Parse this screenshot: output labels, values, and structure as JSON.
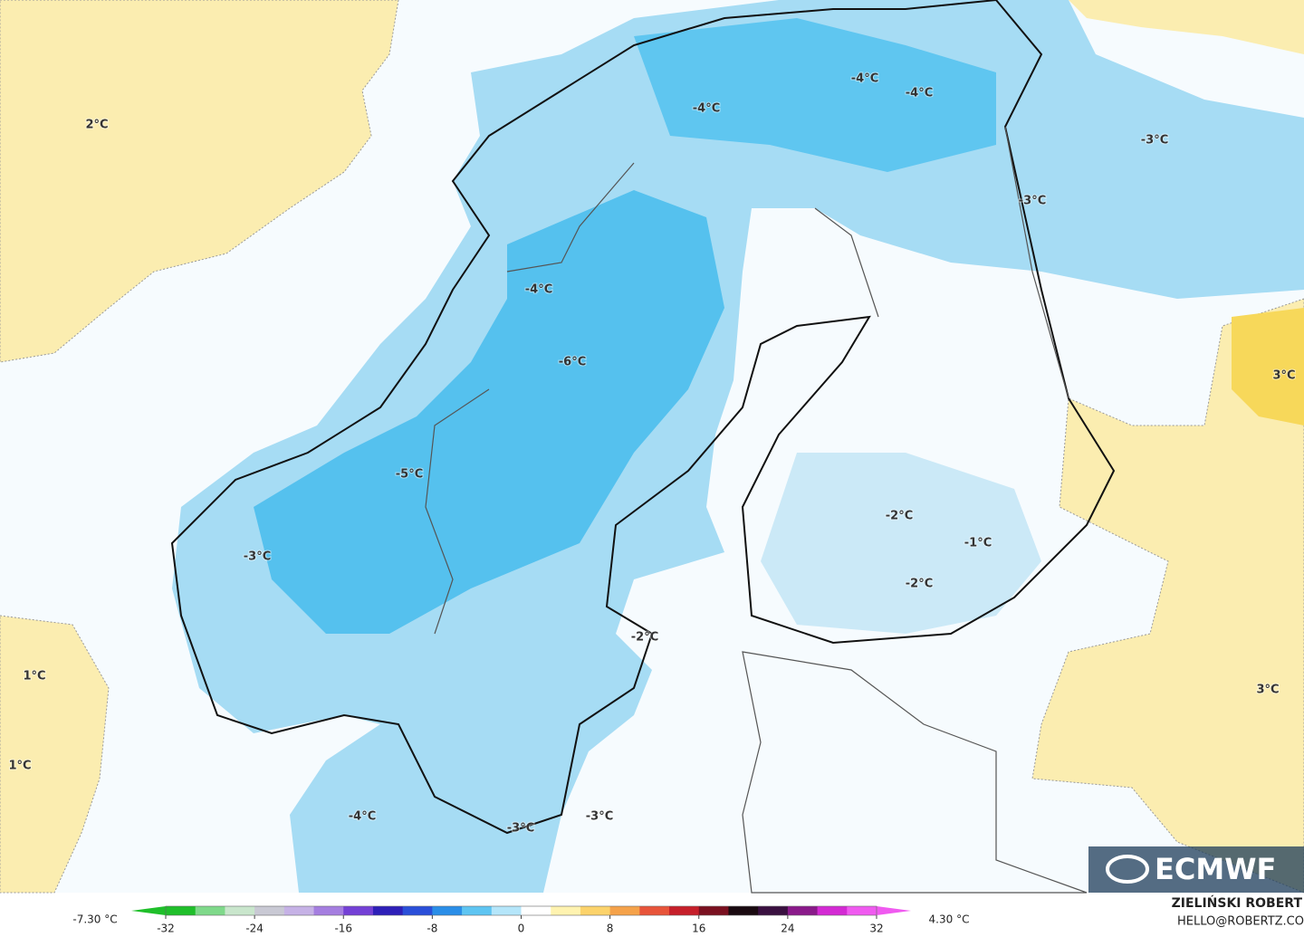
{
  "map": {
    "labels": [
      "2°C",
      "-4°C",
      "-4°C",
      "-4°C",
      "-3°C",
      "-3°C",
      "-4°C",
      "-6°C",
      "-5°C",
      "3°C",
      "-3°C",
      "-2°C",
      "-1°C",
      "-2°C",
      "-2°C",
      "1°C",
      "3°C",
      "1°C",
      "-4°C",
      "-3°C",
      "-3°C"
    ],
    "logo": "ECMWF"
  },
  "colorbar": {
    "min_label": "-7.30 °C",
    "max_label": "4.30 °C",
    "lim": [
      -32,
      32
    ],
    "ticks": [
      -32,
      -24,
      -16,
      -8,
      0,
      8,
      16,
      24,
      32
    ],
    "colors": [
      "#1fbf2a",
      "#7fd98a",
      "#c9e6cc",
      "#c9c9d4",
      "#c6b2e6",
      "#a57ee0",
      "#7440d6",
      "#2e1fb8",
      "#2a4fd9",
      "#2a8ee8",
      "#5ec5f2",
      "#b5e6fa",
      "#ffffff",
      "#fff3b0",
      "#fcd36b",
      "#f5a24a",
      "#e8543a",
      "#c61f2a",
      "#7a1020",
      "#1a0a10",
      "#3a1040",
      "#8a1a8a",
      "#d42ad4",
      "#f05af0"
    ]
  },
  "credits": {
    "author": "ZIELIŃSKI ROBERT",
    "contact": "HELLO@ROBERTZ.CO"
  }
}
